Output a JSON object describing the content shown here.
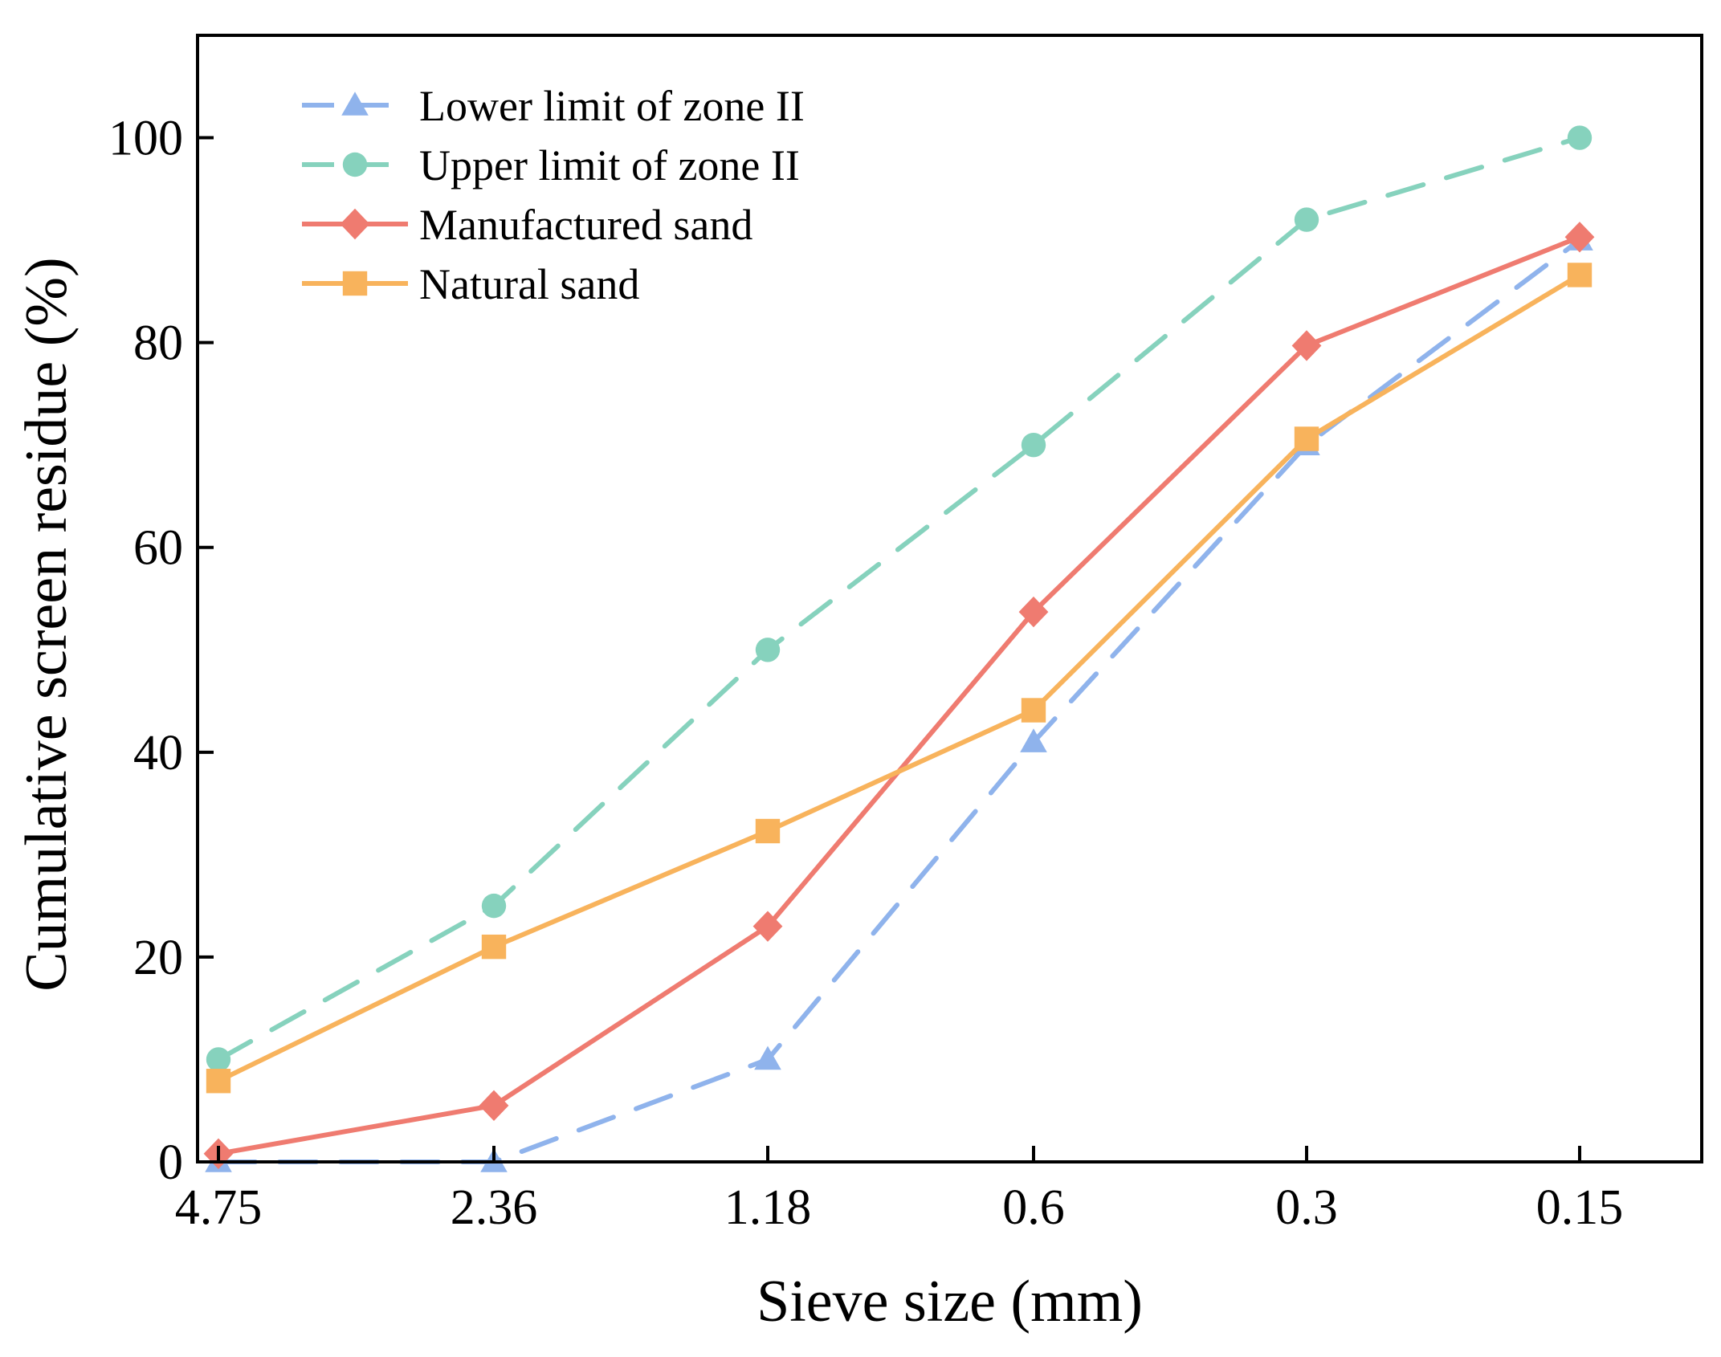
{
  "chart_data": {
    "type": "line",
    "title": "",
    "xlabel": "Sieve size (mm)",
    "ylabel": "Cumulative screen residue (%)",
    "categories": [
      "4.75",
      "2.36",
      "1.18",
      "0.6",
      "0.3",
      "0.15"
    ],
    "ylim": [
      0,
      110
    ],
    "yticks": [
      0,
      20,
      40,
      60,
      80,
      100
    ],
    "grid": false,
    "legend_position": "top-left",
    "series": [
      {
        "name": "Lower limit of zone II",
        "values": [
          0,
          0,
          10,
          41,
          70,
          90
        ],
        "color": "#8fb3ec",
        "line_style": "dashed",
        "marker": "triangle"
      },
      {
        "name": "Upper limit of zone II",
        "values": [
          10,
          25,
          50,
          70,
          92,
          100
        ],
        "color": "#86d2bd",
        "line_style": "dashed",
        "marker": "circle"
      },
      {
        "name": "Manufactured sand",
        "values": [
          0.8,
          5.5,
          23,
          53.7,
          79.7,
          90.3
        ],
        "color": "#ef7b70",
        "line_style": "solid",
        "marker": "diamond"
      },
      {
        "name": "Natural sand",
        "values": [
          7.9,
          21,
          32.3,
          44.1,
          70.6,
          86.6
        ],
        "color": "#f8b35c",
        "line_style": "solid",
        "marker": "square"
      }
    ]
  }
}
